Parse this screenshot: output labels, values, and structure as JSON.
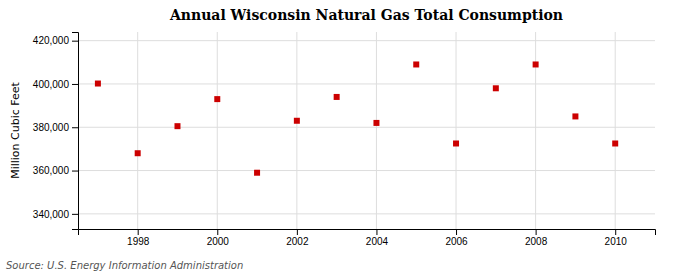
{
  "chart_data": {
    "type": "scatter",
    "title": "Annual Wisconsin Natural Gas Total Consumption",
    "ylabel": "Million Cubic Feet",
    "annotations": [
      "Source: U.S. Energy Information Administration"
    ],
    "x": [
      1997,
      1998,
      1999,
      2000,
      2001,
      2002,
      2003,
      2004,
      2005,
      2006,
      2007,
      2008,
      2009,
      2010
    ],
    "values": [
      400200,
      368000,
      380500,
      393000,
      359000,
      383000,
      394000,
      382000,
      409000,
      372500,
      398000,
      409000,
      385000,
      372500
    ],
    "color": "#cc0000",
    "marker": "square",
    "grid": true,
    "xlim": [
      1996.5,
      2011.0
    ],
    "xticks": [
      1998,
      2000,
      2002,
      2004,
      2006,
      2008,
      2010
    ],
    "ylim": [
      333000,
      424000
    ],
    "yticks": [
      {
        "value": 340000,
        "label": "340,000"
      },
      {
        "value": 360000,
        "label": "360,000"
      },
      {
        "value": 380000,
        "label": "380,000"
      },
      {
        "value": 400000,
        "label": "400,000"
      },
      {
        "value": 420000,
        "label": "420,000"
      }
    ]
  }
}
